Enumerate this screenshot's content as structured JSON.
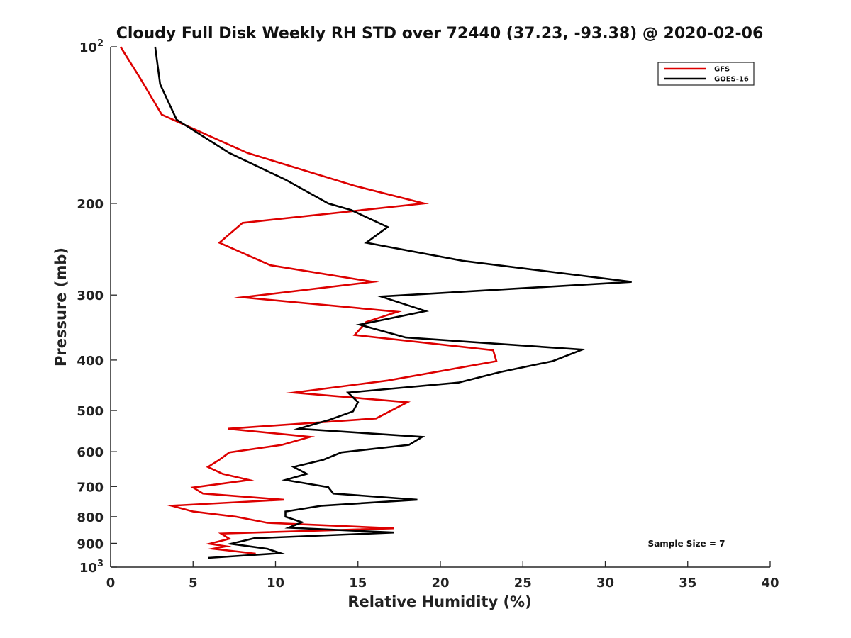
{
  "chart_data": {
    "type": "line",
    "title": "Cloudy Full Disk Weekly RH STD over 72440 (37.23, -93.38) @ 2020-02-06",
    "xlabel": "Relative Humidity (%)",
    "ylabel": "Pressure (mb)",
    "xlim": [
      0,
      40
    ],
    "ylim": [
      100,
      1000
    ],
    "y_scale": "log",
    "y_reversed": true,
    "xticks": [
      0,
      5,
      10,
      15,
      20,
      25,
      30,
      35,
      40
    ],
    "xtick_labels": [
      "0",
      "5",
      "10",
      "15",
      "20",
      "25",
      "30",
      "35",
      "40"
    ],
    "yticks": [
      {
        "value": 100,
        "base": "10",
        "exp": "2",
        "label": ""
      },
      {
        "value": 200,
        "label": "200"
      },
      {
        "value": 300,
        "label": "300"
      },
      {
        "value": 400,
        "label": "400"
      },
      {
        "value": 500,
        "label": "500"
      },
      {
        "value": 600,
        "label": "600"
      },
      {
        "value": 700,
        "label": "700"
      },
      {
        "value": 800,
        "label": "800"
      },
      {
        "value": 900,
        "label": "900"
      },
      {
        "value": 1000,
        "base": "10",
        "exp": "3",
        "label": ""
      }
    ],
    "grid": false,
    "legend_position": "top-right",
    "annotation": "Sample Size = 7",
    "series": [
      {
        "name": "GFS",
        "color": "#dd0000",
        "points": [
          [
            0.6,
            100
          ],
          [
            1.8,
            115
          ],
          [
            3.1,
            135
          ],
          [
            8.3,
            160
          ],
          [
            14.8,
            185
          ],
          [
            19.0,
            200
          ],
          [
            8.0,
            218
          ],
          [
            6.6,
            238
          ],
          [
            9.7,
            263
          ],
          [
            15.9,
            283
          ],
          [
            8.0,
            303
          ],
          [
            17.4,
            323
          ],
          [
            15.5,
            338
          ],
          [
            14.8,
            358
          ],
          [
            23.2,
            383
          ],
          [
            23.4,
            402
          ],
          [
            16.8,
            438
          ],
          [
            11.1,
            462
          ],
          [
            18.0,
            482
          ],
          [
            16.1,
            518
          ],
          [
            7.1,
            542
          ],
          [
            12.1,
            562
          ],
          [
            10.4,
            582
          ],
          [
            7.2,
            602
          ],
          [
            6.6,
            622
          ],
          [
            5.9,
            642
          ],
          [
            6.8,
            662
          ],
          [
            8.4,
            680
          ],
          [
            5.0,
            703
          ],
          [
            5.6,
            722
          ],
          [
            10.5,
            742
          ],
          [
            3.7,
            762
          ],
          [
            5.0,
            782
          ],
          [
            7.6,
            800
          ],
          [
            9.5,
            822
          ],
          [
            17.2,
            842
          ],
          [
            6.7,
            862
          ],
          [
            7.2,
            882
          ],
          [
            6.0,
            902
          ],
          [
            7.0,
            912
          ],
          [
            6.2,
            922
          ],
          [
            8.8,
            942
          ]
        ]
      },
      {
        "name": "GOES-16",
        "color": "#000000",
        "points": [
          [
            2.7,
            100
          ],
          [
            3.0,
            118
          ],
          [
            4.0,
            138
          ],
          [
            7.2,
            160
          ],
          [
            10.6,
            180
          ],
          [
            13.2,
            200
          ],
          [
            14.6,
            206
          ],
          [
            16.8,
            222
          ],
          [
            15.5,
            238
          ],
          [
            21.4,
            258
          ],
          [
            31.6,
            283
          ],
          [
            16.4,
            302
          ],
          [
            19.1,
            322
          ],
          [
            15.1,
            342
          ],
          [
            17.9,
            362
          ],
          [
            28.6,
            382
          ],
          [
            26.8,
            402
          ],
          [
            23.6,
            422
          ],
          [
            21.1,
            442
          ],
          [
            14.4,
            462
          ],
          [
            15.0,
            482
          ],
          [
            14.7,
            502
          ],
          [
            13.2,
            522
          ],
          [
            11.4,
            542
          ],
          [
            18.9,
            562
          ],
          [
            18.1,
            582
          ],
          [
            14.0,
            602
          ],
          [
            12.9,
            622
          ],
          [
            11.1,
            642
          ],
          [
            11.9,
            662
          ],
          [
            10.6,
            680
          ],
          [
            13.2,
            702
          ],
          [
            13.5,
            722
          ],
          [
            18.6,
            742
          ],
          [
            12.8,
            762
          ],
          [
            10.6,
            782
          ],
          [
            10.6,
            800
          ],
          [
            11.6,
            820
          ],
          [
            10.8,
            840
          ],
          [
            17.2,
            858
          ],
          [
            8.7,
            880
          ],
          [
            7.3,
            902
          ],
          [
            9.5,
            922
          ],
          [
            10.3,
            940
          ],
          [
            5.9,
            960
          ]
        ]
      }
    ]
  }
}
